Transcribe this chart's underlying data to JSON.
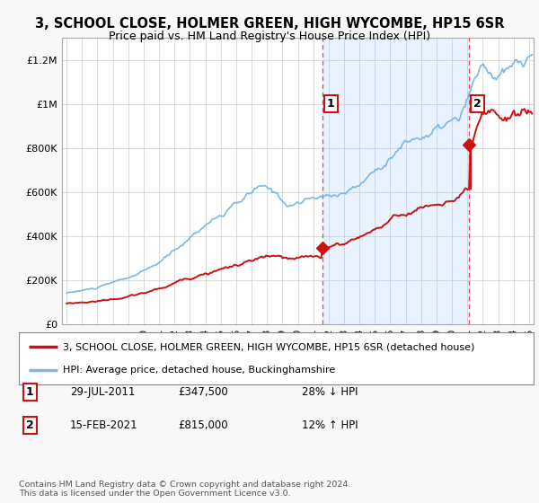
{
  "title": "3, SCHOOL CLOSE, HOLMER GREEN, HIGH WYCOMBE, HP15 6SR",
  "subtitle": "Price paid vs. HM Land Registry's House Price Index (HPI)",
  "background_color": "#f8f8f8",
  "plot_bg_color": "#ffffff",
  "shade_color": "#ddeeff",
  "ylim": [
    0,
    1300000
  ],
  "yticks": [
    0,
    200000,
    400000,
    600000,
    800000,
    1000000,
    1200000
  ],
  "ytick_labels": [
    "£0",
    "£200K",
    "£400K",
    "£600K",
    "£800K",
    "£1M",
    "£1.2M"
  ],
  "sale1_date": "29-JUL-2011",
  "sale1_price": 347500,
  "sale1_label": "28% ↓ HPI",
  "sale2_date": "15-FEB-2021",
  "sale2_price": 815000,
  "sale2_label": "12% ↑ HPI",
  "legend_line1": "3, SCHOOL CLOSE, HOLMER GREEN, HIGH WYCOMBE, HP15 6SR (detached house)",
  "legend_line2": "HPI: Average price, detached house, Buckinghamshire",
  "footer": "Contains HM Land Registry data © Crown copyright and database right 2024.\nThis data is licensed under the Open Government Licence v3.0.",
  "hpi_color": "#7ab8e8",
  "price_color": "#cc1111",
  "sale_dot_color": "#cc1111",
  "vline_color": "#ee4444",
  "sale1_x": 2011.58,
  "sale2_x": 2021.12,
  "xlim_left": 1994.7,
  "xlim_right": 2025.3
}
